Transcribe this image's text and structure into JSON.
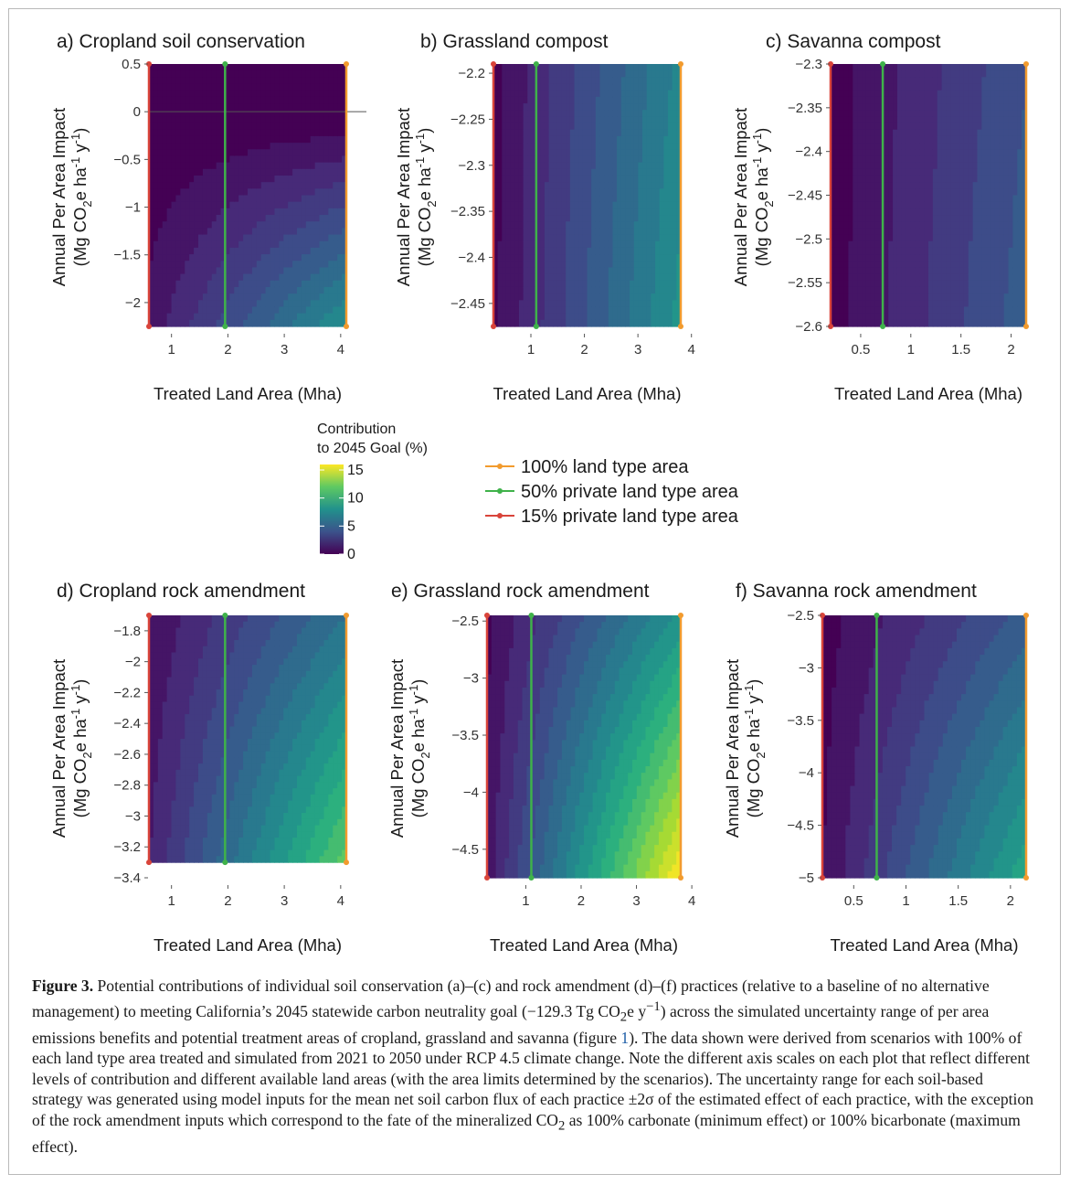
{
  "caption": {
    "label": "Figure 3.",
    "part1": " Potential contributions of individual soil conservation (a)–(c) and rock amendment (d)–(f) practices (relative to a baseline of no alternative management) to meeting California’s 2045 statewide carbon neutrality goal (−129.3 Tg CO",
    "part2": "e y",
    "part3": ") across the simulated uncertainty range of per area emissions benefits and potential treatment areas of cropland, grassland and savanna (figure ",
    "link": "1",
    "part4": "). The data shown were derived from scenarios with 100% of each land type area treated and simulated from 2021 to 2050 under RCP 4.5 climate change. Note the different axis scales on each plot that reflect different levels of contribution and different available land areas (with the area limits determined by the scenarios). The uncertainty range for each soil-based strategy was generated using model inputs for the mean net soil carbon flux of each practice ±2σ of the estimated effect of each practice, with the exception of the rock amendment inputs which correspond to the fate of the mineralized CO",
    "part5": " as 100% carbonate (minimum effect) or 100% bicarbonate (maximum effect).",
    "sub2": "2",
    "supm1": "−1"
  },
  "colorbar": {
    "title1": "Contribution",
    "title2": "to 2045 Goal (%)",
    "ticks": [
      0,
      5,
      10,
      15
    ]
  },
  "legend": [
    {
      "label": "100% land type area",
      "color": "#f29b2e"
    },
    {
      "label": "50% private land type area",
      "color": "#3fb24a"
    },
    {
      "label": "15% private land type area",
      "color": "#d9443a"
    }
  ],
  "axis_labels": {
    "x": "Treated Land Area (Mha)",
    "y1": "Annual Per Area Impact",
    "y2a": "(Mg CO",
    "y2b": "2",
    "y2c": "e ha",
    "y2d": "-1",
    "y2e": " y",
    "y2f": "-1",
    "y2g": ")"
  },
  "chart_data": [
    {
      "type": "heatmap",
      "title": "a) Cropland soil conservation",
      "x_range": [
        0.6,
        4.1
      ],
      "y_range": [
        -2.25,
        0.5
      ],
      "xlim": [
        0.6,
        4.1
      ],
      "ylim": [
        -2.25,
        0.5
      ],
      "xticks": [
        1,
        2,
        3,
        4
      ],
      "yticks": [
        0.5,
        0,
        -0.5,
        -1,
        -1.5,
        -2
      ],
      "ytick_labels": [
        "0.5",
        "0",
        "−0.5",
        "−1",
        "−1.5",
        "−2"
      ],
      "markers_x": {
        "15%": 0.6,
        "50%": 1.95,
        "100%": 4.1
      },
      "zero_line": true
    },
    {
      "type": "heatmap",
      "title": "b) Grassland compost",
      "x_range": [
        0.3,
        3.8
      ],
      "y_range": [
        -2.475,
        -2.19
      ],
      "xlim": [
        0.3,
        3.8
      ],
      "ylim": [
        -2.475,
        -2.19
      ],
      "xticks": [
        1,
        2,
        3,
        4
      ],
      "yticks": [
        -2.2,
        -2.25,
        -2.3,
        -2.35,
        -2.4,
        -2.45
      ],
      "ytick_labels": [
        "−2.2",
        "−2.25",
        "−2.3",
        "−2.35",
        "−2.4",
        "−2.45"
      ],
      "markers_x": {
        "15%": 0.3,
        "50%": 1.1,
        "100%": 3.8
      }
    },
    {
      "type": "heatmap",
      "title": "c) Savanna compost",
      "x_range": [
        0.2,
        2.15
      ],
      "y_range": [
        -2.6,
        -2.3
      ],
      "xlim": [
        0.2,
        2.15
      ],
      "ylim": [
        -2.6,
        -2.3
      ],
      "xticks": [
        0.5,
        1,
        1.5,
        2
      ],
      "yticks": [
        -2.3,
        -2.35,
        -2.4,
        -2.45,
        -2.5,
        -2.55,
        -2.6
      ],
      "ytick_labels": [
        "−2.3",
        "−2.35",
        "−2.4",
        "−2.45",
        "−2.5",
        "−2.55",
        "−2.6"
      ],
      "markers_x": {
        "15%": 0.2,
        "50%": 0.72,
        "100%": 2.15
      }
    },
    {
      "type": "heatmap",
      "title": "d) Cropland rock amendment",
      "x_range": [
        0.6,
        4.1
      ],
      "y_range": [
        -3.3,
        -1.7
      ],
      "xlim": [
        0.6,
        4.1
      ],
      "ylim": [
        -3.4,
        -1.7
      ],
      "xticks": [
        1,
        2,
        3,
        4
      ],
      "yticks": [
        -1.8,
        -2,
        -2.2,
        -2.4,
        -2.6,
        -2.8,
        -3,
        -3.2,
        -3.4
      ],
      "ytick_labels": [
        "−1.8",
        "−2",
        "−2.2",
        "−2.4",
        "−2.6",
        "−2.8",
        "−3",
        "−3.2",
        "−3.4"
      ],
      "markers_x": {
        "15%": 0.6,
        "50%": 1.95,
        "100%": 4.1
      }
    },
    {
      "type": "heatmap",
      "title": "e) Grassland rock amendment",
      "x_range": [
        0.3,
        3.8
      ],
      "y_range": [
        -4.75,
        -2.45
      ],
      "xlim": [
        0.3,
        3.8
      ],
      "ylim": [
        -4.75,
        -2.45
      ],
      "xticks": [
        1,
        2,
        3,
        4
      ],
      "yticks": [
        -2.5,
        -3,
        -3.5,
        -4,
        -4.5
      ],
      "ytick_labels": [
        "−2.5",
        "−3",
        "−3.5",
        "−4",
        "−4.5"
      ],
      "markers_x": {
        "15%": 0.3,
        "50%": 1.1,
        "100%": 3.8
      }
    },
    {
      "type": "heatmap",
      "title": "f) Savanna rock amendment",
      "x_range": [
        0.2,
        2.15
      ],
      "y_range": [
        -5,
        -2.5
      ],
      "xlim": [
        0.2,
        2.15
      ],
      "ylim": [
        -5,
        -2.5
      ],
      "xticks": [
        0.5,
        1,
        1.5,
        2
      ],
      "yticks": [
        -2.5,
        -3,
        -3.5,
        -4,
        -4.5,
        -5
      ],
      "ytick_labels": [
        "−2.5",
        "−3",
        "−3.5",
        "−4",
        "−4.5",
        "−5"
      ],
      "markers_x": {
        "15%": 0.2,
        "50%": 0.72,
        "100%": 2.15
      }
    }
  ]
}
